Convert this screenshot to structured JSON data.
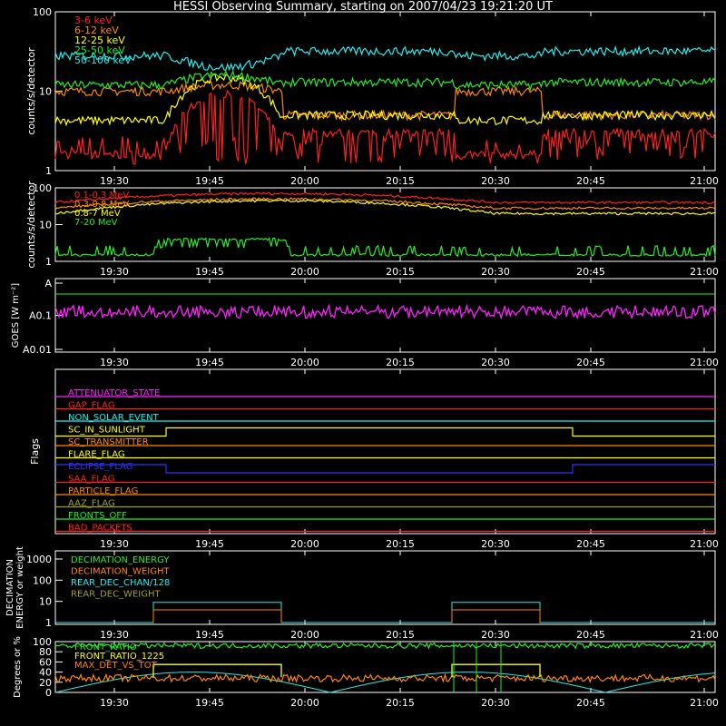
{
  "title": "HESSI Observing Summary, starting on 2007/04/23 19:21:20 UT",
  "time_ticks": [
    "19:30",
    "19:45",
    "20:00",
    "20:15",
    "20:30",
    "20:45",
    "21:00"
  ],
  "colors": {
    "red": "#ff2020",
    "orange": "#ff8800",
    "yellow": "#ffff00",
    "green": "#22ee22",
    "cyan": "#22eeee",
    "magenta": "#ff22ff",
    "blue": "#3030ff",
    "olive": "#a0a020",
    "white": "#ffffff"
  },
  "chart_data": [
    {
      "type": "line",
      "ylabel": "counts/s/detector",
      "scale": "log",
      "yticks": [
        "1",
        "10",
        "100"
      ],
      "ylim": [
        1,
        100
      ],
      "series": [
        {
          "name": "3-6 keV",
          "color": "red",
          "start": 1.6,
          "mid": 9,
          "high": 3
        },
        {
          "name": "6-12 keV",
          "color": "orange",
          "start": 10,
          "mid": 12,
          "high": 5
        },
        {
          "name": "12-25 keV",
          "color": "yellow",
          "start": 4.3,
          "mid": 15,
          "high": 5
        },
        {
          "name": "25-50 keV",
          "color": "green",
          "start": 12,
          "mid": 16,
          "high": 13
        },
        {
          "name": "50-100 keV",
          "color": "cyan",
          "start": 28,
          "mid": 20,
          "high": 32
        }
      ]
    },
    {
      "type": "line",
      "ylabel": "counts/s/detector",
      "scale": "log",
      "yticks": [
        "1",
        "10",
        "100"
      ],
      "ylim": [
        1,
        100
      ],
      "series": [
        {
          "name": "0.1-0.3 MeV",
          "color": "red",
          "base": 40,
          "peak": 70
        },
        {
          "name": "0.3-0.8 MeV",
          "color": "orange",
          "base": 28,
          "peak": 50
        },
        {
          "name": "0.8-7 MeV",
          "color": "yellow",
          "base": 20,
          "peak": 45
        },
        {
          "name": "7-20 MeV",
          "color": "green",
          "base": 1.5,
          "peak": 4
        }
      ]
    },
    {
      "type": "line",
      "ylabel": "GOES [W m⁻²]",
      "yticks": [
        "A0.01",
        "A0.1",
        "A"
      ],
      "series": [
        {
          "name": "",
          "color": "magenta",
          "level": 0.12
        },
        {
          "name": "",
          "color": "green",
          "level": 0.9
        }
      ]
    },
    {
      "type": "table",
      "ylabel": "Flags",
      "flags": [
        {
          "name": "ATTENUATOR_STATE",
          "color": "magenta"
        },
        {
          "name": "GAP_FLAG",
          "color": "red"
        },
        {
          "name": "NON_SOLAR_EVENT",
          "color": "cyan"
        },
        {
          "name": "SC_IN_SUNLIGHT",
          "color": "yellow"
        },
        {
          "name": "SC_TRANSMITTER",
          "color": "orange"
        },
        {
          "name": "FLARE_FLAG",
          "color": "yellow"
        },
        {
          "name": "ECLIPSE_FLAG",
          "color": "blue"
        },
        {
          "name": "SAA_FLAG",
          "color": "red"
        },
        {
          "name": "PARTICLE_FLAG",
          "color": "orange"
        },
        {
          "name": "AAZ_FLAG",
          "color": "olive"
        },
        {
          "name": "FRONTS_OFF",
          "color": "green"
        },
        {
          "name": "BAD_PACKETS",
          "color": "red"
        }
      ]
    },
    {
      "type": "line",
      "ylabel": "DECIMATION ENERGY or weight",
      "scale": "log",
      "yticks": [
        "1",
        "10",
        "100",
        "1000"
      ],
      "series": [
        {
          "name": "DECIMATION_ENERGY",
          "color": "green"
        },
        {
          "name": "DECIMATION_WEIGHT",
          "color": "orange"
        },
        {
          "name": "REAR_DEC_CHAN/128",
          "color": "cyan"
        },
        {
          "name": "REAR_DEC_WEIGHT",
          "color": "olive"
        }
      ]
    },
    {
      "type": "line",
      "ylabel": "Degrees or %",
      "yticks": [
        "0",
        "20",
        "40",
        "60",
        "80",
        "100"
      ],
      "ylim": [
        0,
        100
      ],
      "series": [
        {
          "name": "FRONT_RATIO",
          "color": "green",
          "level": 92
        },
        {
          "name": "FRONT_RATIO_1225",
          "color": "yellow",
          "level": 55
        },
        {
          "name": "MAX_DET_VS_TOT",
          "color": "orange",
          "level": 30
        }
      ]
    }
  ]
}
